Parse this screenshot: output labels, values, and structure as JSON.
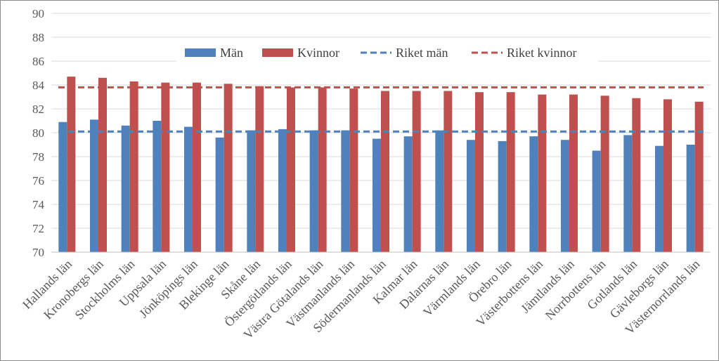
{
  "chart_data": {
    "type": "bar",
    "title": "",
    "xlabel": "",
    "ylabel": "",
    "ylim": [
      70,
      90
    ],
    "yticks": [
      70,
      72,
      74,
      76,
      78,
      80,
      82,
      84,
      86,
      88,
      90
    ],
    "grid": true,
    "legend_position": "top",
    "categories": [
      "Hallands län",
      "Kronobergs län",
      "Stockholms län",
      "Uppsala län",
      "Jönköpings län",
      "Blekinge län",
      "Skåne län",
      "Östergötlands län",
      "Västra Götalands län",
      "Västmanlands län",
      "Södermanlands län",
      "Kalmar län",
      "Dalarnas län",
      "Värmlands län",
      "Örebro län",
      "Västerbottens län",
      "Jämtlands län",
      "Norrbottens län",
      "Gotlands län",
      "Gävleborgs län",
      "Västernorrlands län"
    ],
    "series": [
      {
        "name": "Män",
        "kind": "bar",
        "color": "#4f81bd",
        "values": [
          80.9,
          81.1,
          80.6,
          81.0,
          80.5,
          79.6,
          80.2,
          80.3,
          80.2,
          80.2,
          79.5,
          79.7,
          80.2,
          79.4,
          79.3,
          79.7,
          79.4,
          78.5,
          79.8,
          78.9,
          79.0
        ]
      },
      {
        "name": "Kvinnor",
        "kind": "bar",
        "color": "#c0504d",
        "values": [
          84.7,
          84.6,
          84.3,
          84.2,
          84.2,
          84.1,
          83.9,
          83.8,
          83.8,
          83.7,
          83.5,
          83.5,
          83.5,
          83.4,
          83.4,
          83.2,
          83.2,
          83.1,
          82.9,
          82.8,
          82.6
        ]
      },
      {
        "name": "Riket män",
        "kind": "dashed-line",
        "color": "#4f81bd",
        "value": 80.1
      },
      {
        "name": "Riket kvinnor",
        "kind": "dashed-line",
        "color": "#c0504d",
        "value": 83.8
      }
    ]
  }
}
